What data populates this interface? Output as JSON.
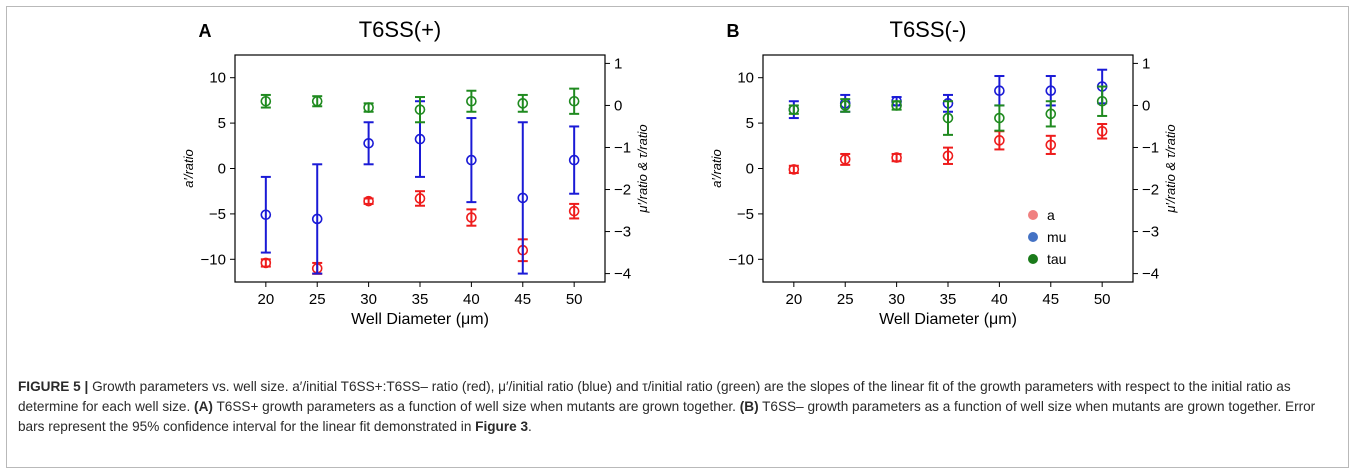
{
  "figure": {
    "caption_segments": [
      {
        "text": "FIGURE 5 | ",
        "bold": true
      },
      {
        "text": "Growth parameters vs. well size. a′/initial T6SS+:T6SS– ratio (red), μ′/initial ratio (blue) and τ/initial ratio (green) are the slopes of the linear fit of the growth parameters with respect to the initial ratio as determine for each well size. ",
        "bold": false
      },
      {
        "text": "(A)",
        "bold": true
      },
      {
        "text": " T6SS+ growth parameters as a function of well size when mutants are grown together. ",
        "bold": false
      },
      {
        "text": "(B)",
        "bold": true
      },
      {
        "text": " T6SS– growth parameters as a function of well size when mutants are grown together. Error bars represent the 95% confidence interval for the linear fit demonstrated in ",
        "bold": false
      },
      {
        "text": "Figure 3",
        "bold": true
      },
      {
        "text": ".",
        "bold": false
      }
    ]
  },
  "colors": {
    "a": "#ee1c1c",
    "mu": "#1a1ad6",
    "tau": "#1f8a1f",
    "legend_a": "#f08080",
    "legend_mu": "#4472c4",
    "legend_tau": "#1a7a1a"
  },
  "chart_data": [
    {
      "panel_label": "A",
      "title": "T6SS(+)",
      "type": "scatter",
      "xlabel": "Well Diameter (μm)",
      "ylabel_left": "a′/ratio",
      "ylabel_right": "μ′/ratio & τ/ratio",
      "x_ticks": [
        20,
        25,
        30,
        35,
        40,
        45,
        50
      ],
      "y_left_ticks": [
        -10,
        -5,
        0,
        5,
        10
      ],
      "y_right_ticks": [
        -4,
        -3,
        -2,
        -1,
        0,
        1
      ],
      "xlim": [
        17,
        53
      ],
      "ylim_left": [
        -12.5,
        12.5
      ],
      "ylim_right": [
        -4.2,
        1.2
      ],
      "series": [
        {
          "name": "a",
          "axis": "left",
          "x": [
            20,
            25,
            30,
            35,
            40,
            45,
            50
          ],
          "y": [
            -10.4,
            -11.0,
            -3.6,
            -3.3,
            -5.4,
            -9.0,
            -4.7
          ],
          "err_low": [
            0.4,
            0.6,
            0.3,
            0.8,
            0.9,
            1.2,
            0.8
          ],
          "err_high": [
            0.4,
            0.6,
            0.3,
            0.8,
            0.9,
            1.2,
            0.8
          ]
        },
        {
          "name": "mu",
          "axis": "right",
          "x": [
            20,
            25,
            30,
            35,
            40,
            45,
            50
          ],
          "y": [
            -2.6,
            -2.7,
            -0.9,
            -0.8,
            -1.3,
            -2.2,
            -1.3
          ],
          "err_low": [
            0.9,
            1.3,
            0.5,
            0.9,
            1.0,
            1.8,
            0.8
          ],
          "err_high": [
            0.9,
            1.3,
            0.5,
            0.9,
            1.0,
            1.8,
            0.8
          ]
        },
        {
          "name": "tau",
          "axis": "right",
          "x": [
            20,
            25,
            30,
            35,
            40,
            45,
            50
          ],
          "y": [
            0.1,
            0.1,
            -0.05,
            -0.1,
            0.1,
            0.05,
            0.1
          ],
          "err_low": [
            0.15,
            0.12,
            0.1,
            0.3,
            0.25,
            0.2,
            0.3
          ],
          "err_high": [
            0.15,
            0.12,
            0.1,
            0.3,
            0.25,
            0.2,
            0.3
          ]
        }
      ]
    },
    {
      "panel_label": "B",
      "title": "T6SS(-)",
      "type": "scatter",
      "xlabel": "Well Diameter (μm)",
      "ylabel_left": "a′/ratio",
      "ylabel_right": "μ′/ratio & τ/ratio",
      "x_ticks": [
        20,
        25,
        30,
        35,
        40,
        45,
        50
      ],
      "y_left_ticks": [
        -10,
        -5,
        0,
        5,
        10
      ],
      "y_right_ticks": [
        -4,
        -3,
        -2,
        -1,
        0,
        1
      ],
      "xlim": [
        17,
        53
      ],
      "ylim_left": [
        -12.5,
        12.5
      ],
      "ylim_right": [
        -4.2,
        1.2
      ],
      "legend": [
        "a",
        "mu",
        "tau"
      ],
      "legend_position": "lower-right",
      "series": [
        {
          "name": "a",
          "axis": "left",
          "x": [
            20,
            25,
            30,
            35,
            40,
            45,
            50
          ],
          "y": [
            -0.1,
            1.0,
            1.2,
            1.4,
            3.1,
            2.6,
            4.1
          ],
          "err_low": [
            0.4,
            0.6,
            0.4,
            0.9,
            1.0,
            1.0,
            0.8
          ],
          "err_high": [
            0.4,
            0.6,
            0.4,
            0.9,
            1.0,
            1.0,
            0.8
          ]
        },
        {
          "name": "mu",
          "axis": "right",
          "x": [
            20,
            25,
            30,
            35,
            40,
            45,
            50
          ],
          "y": [
            -0.1,
            0.05,
            0.1,
            0.05,
            0.35,
            0.35,
            0.45
          ],
          "err_low": [
            0.2,
            0.2,
            0.1,
            0.2,
            0.35,
            0.35,
            0.4
          ],
          "err_high": [
            0.2,
            0.2,
            0.1,
            0.2,
            0.35,
            0.35,
            0.4
          ]
        },
        {
          "name": "tau",
          "axis": "right",
          "x": [
            20,
            25,
            30,
            35,
            40,
            45,
            50
          ],
          "y": [
            -0.1,
            0.0,
            0.0,
            -0.3,
            -0.3,
            -0.2,
            0.1
          ],
          "err_low": [
            0.1,
            0.15,
            0.1,
            0.4,
            0.3,
            0.3,
            0.35
          ],
          "err_high": [
            0.1,
            0.15,
            0.1,
            0.4,
            0.3,
            0.3,
            0.35
          ]
        }
      ]
    }
  ]
}
